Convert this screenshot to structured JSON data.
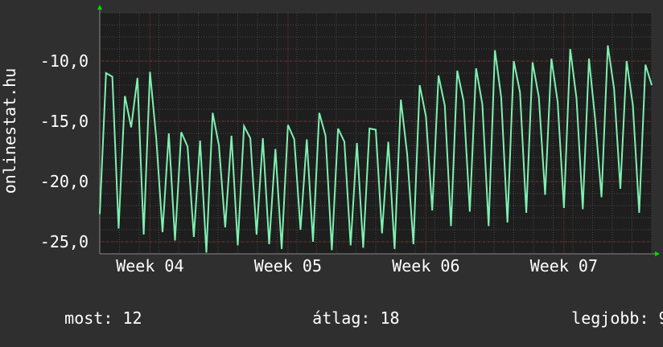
{
  "side_label": "onlinestat.hu",
  "footer": {
    "most_label": "most:",
    "most_value": "12",
    "atlag_label": "átlag:",
    "atlag_value": "18",
    "legjobb_label": "legjobb:",
    "legjobb_value": "9"
  },
  "colors": {
    "background": "#2f2f2f",
    "plot_background": "#1e1e1e",
    "line": "#7ff0b0",
    "grid_major": "#7a3030",
    "grid_minor": "#4a4a4a",
    "arrow": "#00dd00"
  },
  "chart_data": {
    "type": "line",
    "title": "",
    "xlabel": "",
    "ylabel": "",
    "ylim": [
      -26.0,
      -6.0
    ],
    "xlim": [
      0,
      44
    ],
    "grid": true,
    "y_ticks": [
      -25,
      -20,
      -15,
      -10
    ],
    "y_tick_labels": [
      "-25,0",
      "-20,0",
      "-15,0",
      "-10,0"
    ],
    "x_ticks": [
      4,
      15,
      26,
      37
    ],
    "x_tick_labels": [
      "Week 04",
      "Week 05",
      "Week 06",
      "Week 07"
    ],
    "series": [
      {
        "values": [
          -22.7,
          -11.0,
          -11.3,
          -23.9,
          -12.9,
          -15.5,
          -11.4,
          -24.4,
          -10.9,
          -16.4,
          -24.2,
          -16.0,
          -24.9,
          -15.9,
          -17.1,
          -24.6,
          -16.6,
          -25.9,
          -14.3,
          -17.0,
          -23.8,
          -16.2,
          -25.3,
          -15.4,
          -16.4,
          -24.4,
          -16.4,
          -25.2,
          -17.3,
          -25.6,
          -15.3,
          -16.5,
          -24.0,
          -16.5,
          -25.0,
          -14.3,
          -16.2,
          -25.7,
          -15.6,
          -16.7,
          -25.3,
          -16.8,
          -25.5,
          -15.6,
          -15.7,
          -24.3,
          -16.7,
          -25.6,
          -13.2,
          -17.7,
          -25.2,
          -12.0,
          -14.6,
          -22.4,
          -11.2,
          -13.7,
          -23.7,
          -10.8,
          -13.3,
          -22.5,
          -10.6,
          -13.6,
          -23.7,
          -9.1,
          -13.0,
          -23.4,
          -10.0,
          -12.6,
          -22.6,
          -10.1,
          -13.0,
          -21.1,
          -9.8,
          -13.4,
          -22.2,
          -9.0,
          -13.1,
          -22.3,
          -9.8,
          -14.9,
          -21.3,
          -8.7,
          -12.3,
          -20.6,
          -10.0,
          -13.7,
          -22.6,
          -10.3,
          -12.0
        ]
      }
    ]
  }
}
